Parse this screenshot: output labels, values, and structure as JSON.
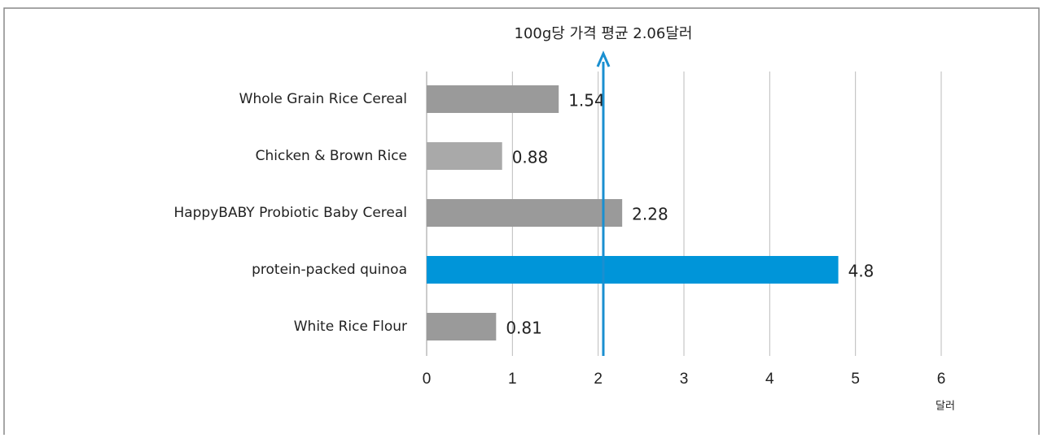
{
  "chart_data": {
    "type": "bar",
    "orientation": "horizontal",
    "title": "100g당 가격 평균 2.06달러",
    "xlabel": "달러",
    "categories": [
      "Whole Grain Rice Cereal",
      "Chicken & Brown Rice",
      "HappyBABY Probiotic Baby Cereal",
      "protein-packed quinoa",
      "White Rice Flour"
    ],
    "values": [
      1.54,
      0.88,
      2.28,
      4.8,
      0.81
    ],
    "colors": [
      "#9a9a9a",
      "#a9a9a9",
      "#9a9a9a",
      "#0095d9",
      "#9a9a9a"
    ],
    "average": 2.06,
    "average_color": "#1a8fd0",
    "xlim": [
      0,
      6
    ],
    "xticks": [
      0,
      1,
      2,
      3,
      4,
      5,
      6
    ],
    "grid": true
  }
}
